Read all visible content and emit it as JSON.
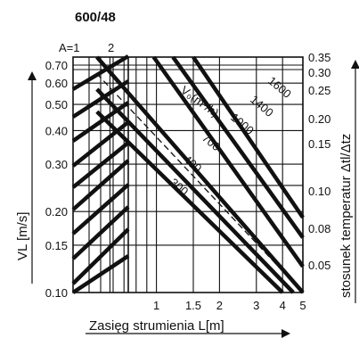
{
  "chart_data": {
    "type": "line",
    "title": "600/48",
    "xlabel": "Zasięg strumienia L[m]",
    "ylabel": "VL [m/s]",
    "y2label": "stosunek temperatur Δtl/Δtz",
    "x_ticks": [
      "1",
      "1.5",
      "2",
      "3",
      "4",
      "5"
    ],
    "y_ticks": [
      "0.10",
      "0.15",
      "0.20",
      "0.30",
      "0.40",
      "0.50",
      "0.60",
      "0.70"
    ],
    "y2_ticks": [
      "0.35",
      "0.30",
      "0.25",
      "0.20",
      "0.15",
      "0.10",
      "0.08",
      "0.05"
    ],
    "a_labels": [
      "A=1",
      "2"
    ],
    "flow_label": "V₀(m³/h)",
    "series": [
      {
        "name": "1600",
        "points": [
          [
            1.5,
            0.75
          ],
          [
            5.0,
            0.19
          ]
        ]
      },
      {
        "name": "1400",
        "points": [
          [
            1.2,
            0.75
          ],
          [
            5.0,
            0.16
          ]
        ]
      },
      {
        "name": "1000",
        "points": [
          [
            0.97,
            0.75
          ],
          [
            5.0,
            0.125
          ]
        ]
      },
      {
        "name": "700",
        "points": [
          [
            0.52,
            0.75
          ],
          [
            5.0,
            0.1
          ]
        ]
      },
      {
        "name": "400",
        "points": [
          [
            0.52,
            0.57
          ],
          [
            4.5,
            0.1
          ]
        ]
      },
      {
        "name": "300",
        "points": [
          [
            0.52,
            0.47
          ],
          [
            4.0,
            0.1
          ]
        ]
      }
    ],
    "dashed_line": {
      "points": [
        [
          0.52,
          0.65
        ],
        [
          5.0,
          0.1
        ]
      ]
    },
    "xlim": [
      0.4,
      5.0
    ],
    "ylim": [
      0.1,
      0.75
    ],
    "scale": "log-log"
  }
}
